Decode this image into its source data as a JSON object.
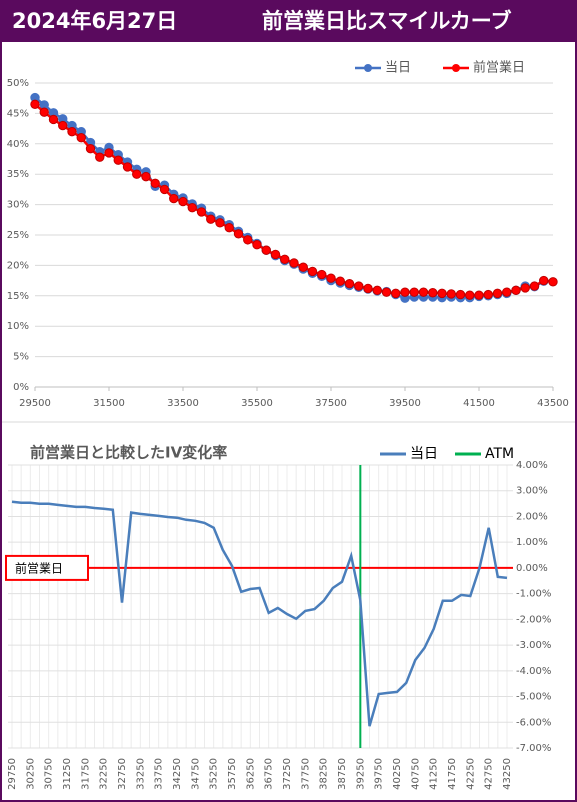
{
  "header": {
    "date": "2024年6月27日",
    "title": "前営業日比スマイルカーブ"
  },
  "chart_data": [
    {
      "type": "line",
      "x": [
        29500,
        29750,
        30000,
        30250,
        30500,
        30750,
        31000,
        31250,
        31500,
        31750,
        32000,
        32250,
        32500,
        32750,
        33000,
        33250,
        33500,
        33750,
        34000,
        34250,
        34500,
        34750,
        35000,
        35250,
        35500,
        35750,
        36000,
        36250,
        36500,
        36750,
        37000,
        37250,
        37500,
        37750,
        38000,
        38250,
        38500,
        38750,
        39000,
        39250,
        39500,
        39750,
        40000,
        40250,
        40500,
        40750,
        41000,
        41250,
        41500,
        41750,
        42000,
        42250,
        42500,
        42750,
        43000,
        43250,
        43500
      ],
      "series": [
        {
          "name": "当日",
          "color": "#4472c4",
          "values": [
            47.6,
            46.4,
            45.1,
            44.1,
            43.0,
            42.0,
            40.2,
            38.7,
            39.4,
            38.2,
            37.0,
            35.8,
            35.4,
            33.0,
            33.2,
            31.7,
            31.1,
            30.1,
            29.4,
            28.1,
            27.5,
            26.7,
            25.6,
            24.6,
            23.6,
            22.5,
            21.6,
            20.8,
            20.2,
            19.4,
            18.7,
            18.2,
            17.5,
            17.1,
            16.7,
            16.4,
            16.1,
            15.8,
            15.7,
            15.2,
            14.6,
            14.8,
            14.8,
            14.8,
            14.7,
            14.8,
            14.7,
            14.7,
            14.9,
            15.0,
            15.2,
            15.4,
            15.9,
            16.6,
            16.5,
            17.4,
            null
          ]
        },
        {
          "name": "前営業日",
          "color": "#ff0000",
          "values": [
            46.5,
            45.2,
            44.0,
            43.0,
            42.0,
            41.0,
            39.2,
            37.8,
            38.5,
            37.3,
            36.2,
            35.0,
            34.6,
            33.5,
            32.5,
            31.0,
            30.5,
            29.5,
            28.8,
            27.6,
            27.0,
            26.2,
            25.2,
            24.2,
            23.4,
            22.5,
            21.8,
            21.0,
            20.4,
            19.7,
            19.0,
            18.5,
            17.9,
            17.4,
            17.0,
            16.6,
            16.2,
            15.9,
            15.6,
            15.4,
            15.6,
            15.6,
            15.6,
            15.5,
            15.4,
            15.3,
            15.2,
            15.1,
            15.1,
            15.2,
            15.4,
            15.6,
            15.9,
            16.3,
            16.6,
            17.5,
            17.3
          ]
        }
      ],
      "xlim": [
        29500,
        43500
      ],
      "xticks": [
        29500,
        31500,
        33500,
        35500,
        37500,
        39500,
        41500,
        43500
      ],
      "ylim": [
        0,
        50
      ],
      "yticks": [
        {
          "value": 0,
          "label": "0%"
        },
        {
          "value": 5,
          "label": "5%"
        },
        {
          "value": 10,
          "label": "10%"
        },
        {
          "value": 15,
          "label": "15%"
        },
        {
          "value": 20,
          "label": "20%"
        },
        {
          "value": 25,
          "label": "25%"
        },
        {
          "value": 30,
          "label": "30%"
        },
        {
          "value": 35,
          "label": "35%"
        },
        {
          "value": 40,
          "label": "40%"
        },
        {
          "value": 45,
          "label": "45%"
        },
        {
          "value": 50,
          "label": "50%"
        }
      ],
      "grid": true,
      "legend": "top-right"
    },
    {
      "type": "line",
      "title": "前営業日と比較したIV変化率",
      "categories": [
        29750,
        null,
        30250,
        null,
        30750,
        null,
        31250,
        null,
        31750,
        null,
        32250,
        null,
        32750,
        null,
        33250,
        null,
        33750,
        null,
        34250,
        null,
        34750,
        null,
        35250,
        null,
        35750,
        null,
        36250,
        null,
        36750,
        null,
        37250,
        null,
        37750,
        null,
        38250,
        null,
        38750,
        null,
        39250,
        null,
        39750,
        null,
        40250,
        null,
        40750,
        null,
        41250,
        null,
        41750,
        null,
        42250,
        null,
        42750,
        null,
        43250
      ],
      "series": [
        {
          "name": "当日",
          "color": "#4a7ebb",
          "axis": "y2",
          "values": [
            2.57,
            2.53,
            2.53,
            2.49,
            2.49,
            2.45,
            2.41,
            2.37,
            2.37,
            2.33,
            2.3,
            2.26,
            -1.35,
            2.15,
            2.1,
            2.06,
            2.02,
            1.98,
            1.95,
            1.87,
            1.83,
            1.75,
            1.56,
            0.7,
            0.08,
            -0.93,
            -0.82,
            -0.78,
            -1.75,
            -1.56,
            -1.79,
            -1.98,
            -1.67,
            -1.6,
            -1.28,
            -0.78,
            -0.54,
            0.47,
            -1.25,
            -6.15,
            -4.9,
            -4.86,
            -4.82,
            -4.47,
            -3.58,
            -3.11,
            -2.37,
            -1.28,
            -1.28,
            -1.05,
            -1.09,
            0.0,
            1.56,
            -0.35,
            -0.39
          ]
        }
      ],
      "atm": {
        "name": "ATM",
        "color": "#00b050",
        "x": 39250
      },
      "reference_line": {
        "label": "前営業日",
        "value": 0,
        "color": "#ff0000"
      },
      "y2lim": [
        -7,
        4
      ],
      "y2ticks": [
        {
          "value": 4,
          "label": "4.00%"
        },
        {
          "value": 3,
          "label": "3.00%"
        },
        {
          "value": 2,
          "label": "2.00%"
        },
        {
          "value": 1,
          "label": "1.00%"
        },
        {
          "value": 0,
          "label": "0.00%"
        },
        {
          "value": -1,
          "label": "-1.00%"
        },
        {
          "value": -2,
          "label": "-2.00%"
        },
        {
          "value": -3,
          "label": "-3.00%"
        },
        {
          "value": -4,
          "label": "-4.00%"
        },
        {
          "value": -5,
          "label": "-5.00%"
        },
        {
          "value": -6,
          "label": "-6.00%"
        },
        {
          "value": -7,
          "label": "-7.00%"
        }
      ],
      "grid": true,
      "legend": "top-right"
    }
  ]
}
